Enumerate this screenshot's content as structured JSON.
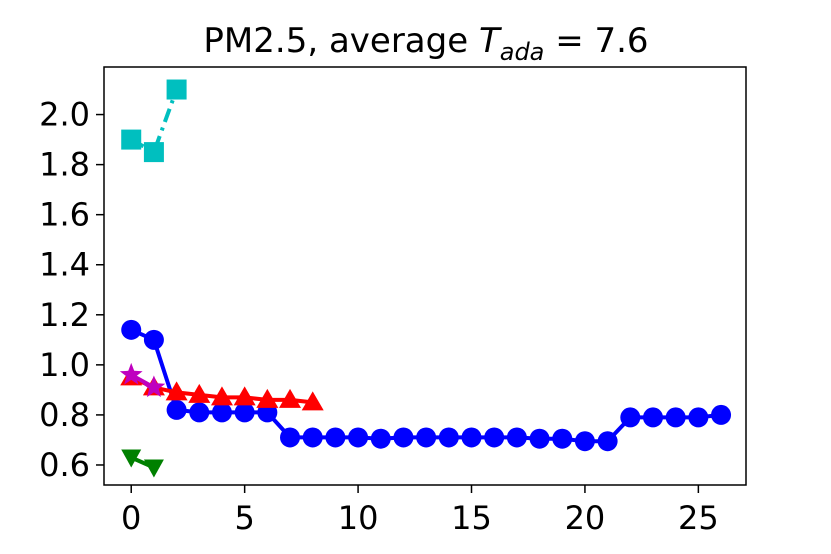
{
  "chart_data": {
    "type": "line",
    "title": {
      "prefix": "PM2.5, average ",
      "var_main": "T",
      "var_sub": "ada",
      "suffix": " = 7.6"
    },
    "xlabel": "",
    "ylabel": "",
    "xlim": [
      -1.2,
      27.1
    ],
    "ylim": [
      0.52,
      2.19
    ],
    "xticks": [
      0,
      5,
      10,
      15,
      20,
      25
    ],
    "yticks": [
      0.6,
      0.8,
      1.0,
      1.2,
      1.4,
      1.6,
      1.8,
      2.0
    ],
    "ytick_labels": [
      "0.6",
      "0.8",
      "1.0",
      "1.2",
      "1.4",
      "1.6",
      "1.8",
      "2.0"
    ],
    "grid": false,
    "series": [
      {
        "color": "#0000ff",
        "marker": "circle",
        "line": "solid",
        "x": [
          0,
          1,
          2,
          3,
          4,
          5,
          6,
          7,
          8,
          9,
          10,
          11,
          12,
          13,
          14,
          15,
          16,
          17,
          18,
          19,
          20,
          21,
          22,
          23,
          24,
          25,
          26
        ],
        "y": [
          1.14,
          1.1,
          0.82,
          0.81,
          0.81,
          0.81,
          0.81,
          0.71,
          0.71,
          0.71,
          0.71,
          0.705,
          0.71,
          0.71,
          0.71,
          0.71,
          0.71,
          0.71,
          0.705,
          0.705,
          0.695,
          0.695,
          0.79,
          0.79,
          0.79,
          0.79,
          0.8
        ]
      },
      {
        "color": "#ff0000",
        "marker": "triangle-up",
        "line": "solid",
        "x": [
          0,
          1,
          2,
          3,
          4,
          5,
          6,
          7,
          8
        ],
        "y": [
          0.95,
          0.91,
          0.89,
          0.88,
          0.87,
          0.87,
          0.86,
          0.86,
          0.85
        ]
      },
      {
        "color": "#bf00bf",
        "marker": "star",
        "line": "solid",
        "x": [
          0,
          1
        ],
        "y": [
          0.96,
          0.91
        ]
      },
      {
        "color": "#00bfbf",
        "marker": "square",
        "line": "dashdot",
        "x": [
          0,
          1,
          2
        ],
        "y": [
          1.9,
          1.85,
          2.1
        ]
      },
      {
        "color": "#008000",
        "marker": "triangle-down",
        "line": "solid",
        "x": [
          0,
          1
        ],
        "y": [
          0.63,
          0.59
        ]
      }
    ]
  }
}
